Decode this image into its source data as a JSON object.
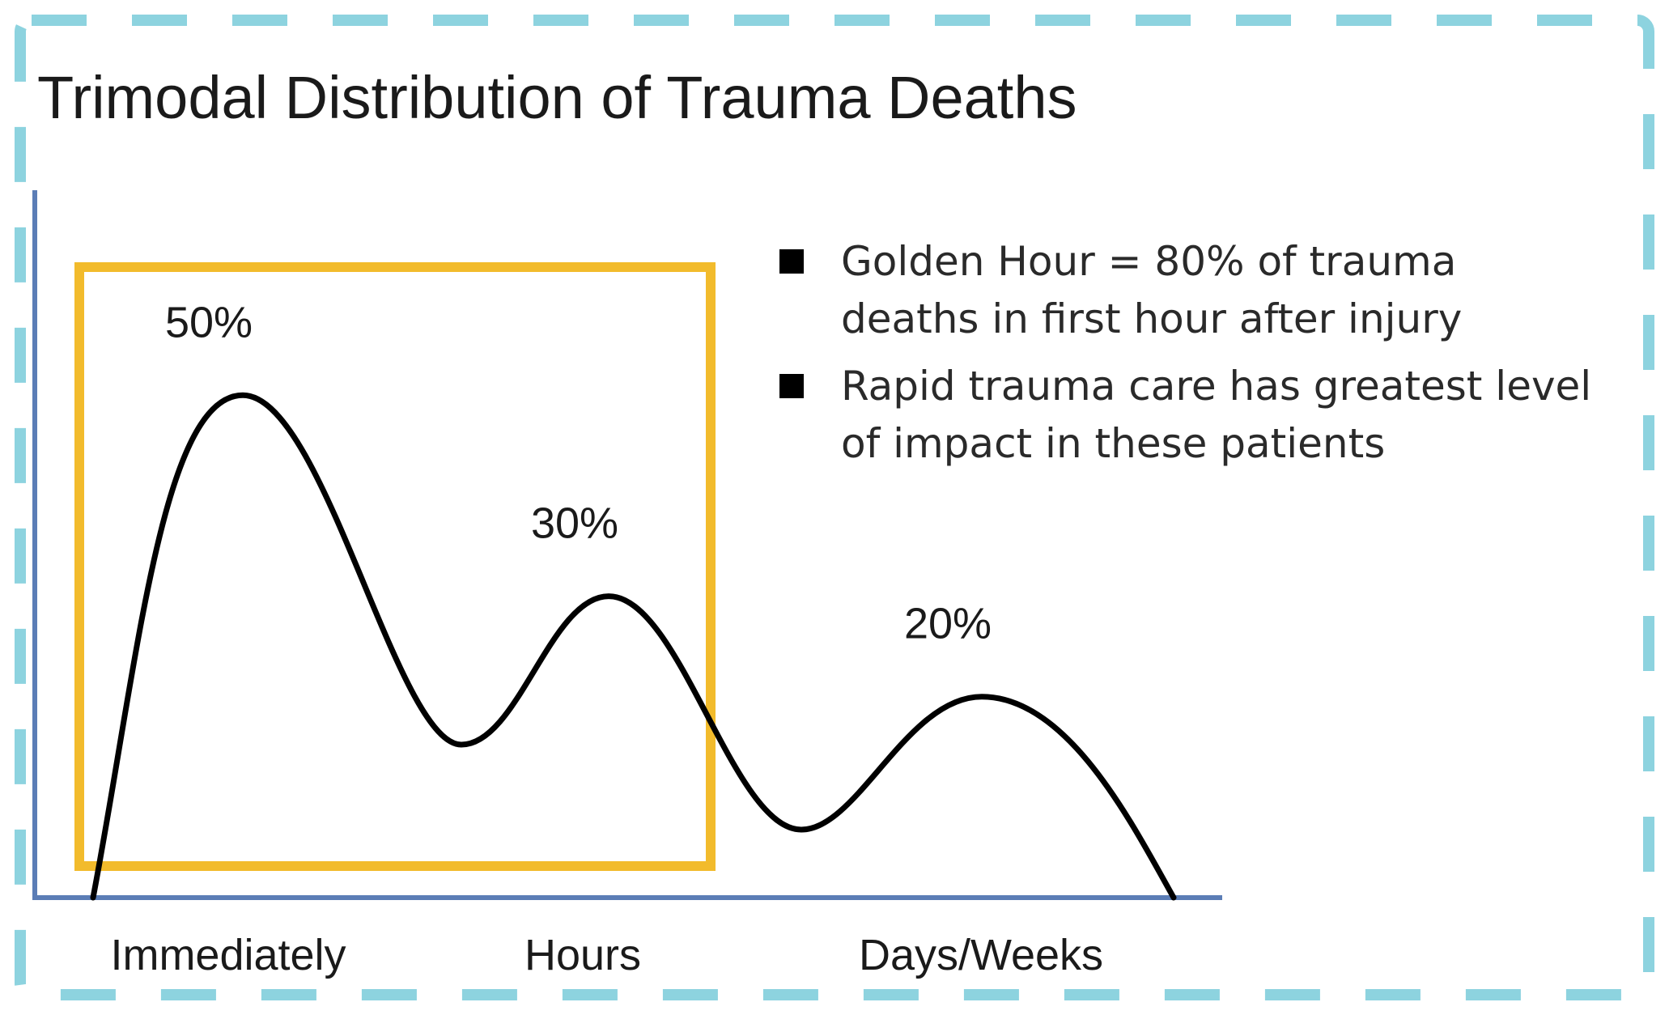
{
  "chart_data": {
    "type": "line",
    "title": "Trimodal Distribution of Trauma Deaths",
    "categories": [
      "Immediately",
      "Hours",
      "Days/Weeks"
    ],
    "peaks": [
      {
        "category": "Immediately",
        "value": 50,
        "label": "50%"
      },
      {
        "category": "Hours",
        "value": 30,
        "label": "30%"
      },
      {
        "category": "Days/Weeks",
        "value": 20,
        "label": "20%"
      }
    ],
    "highlight": {
      "covers": [
        "Immediately",
        "Hours"
      ],
      "color": "#f2bb2c"
    },
    "annotations": [
      {
        "text": "Golden Hour = 80% of trauma deaths in first hour after injury"
      },
      {
        "text": "Rapid trauma care has greatest level of impact in these patients"
      }
    ],
    "xlabel": "",
    "ylabel": "",
    "grid": false,
    "legend": "none"
  },
  "colors": {
    "frame_dash": "#8dd3df",
    "axis": "#5b7db6",
    "curve": "#000000",
    "highlight_box": "#f2bb2c",
    "text": "#1a1a1a"
  }
}
